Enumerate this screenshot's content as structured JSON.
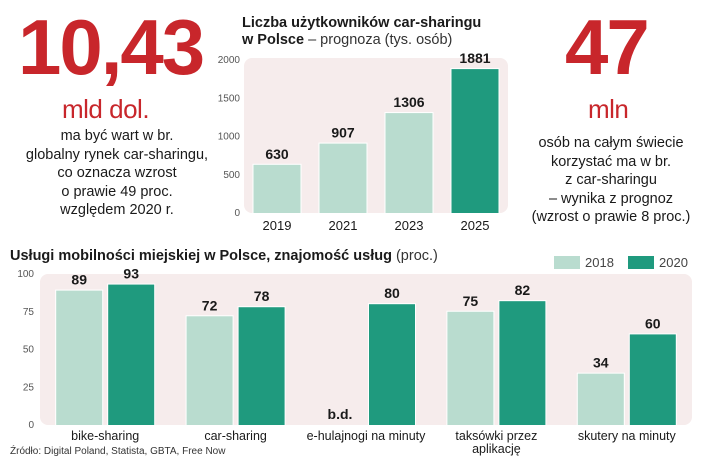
{
  "left_stat": {
    "value": "10,43",
    "unit": "mld dol.",
    "description": [
      "ma być wart w br.",
      "globalny rynek car-sharingu,",
      "co oznacza wzrost",
      "o prawie 49 proc.",
      "względem 2020 r."
    ]
  },
  "right_stat": {
    "value": "47",
    "unit": "mln",
    "description": [
      "osób na całym świecie",
      "korzystać ma w br.",
      "z car-sharingu",
      "– wynika z prognoz",
      "(wzrost o prawie 8 proc.)"
    ]
  },
  "colors": {
    "accent_red": "#c8262b",
    "bar_light": "#b9dccf",
    "bar_dark": "#1f9a7e",
    "panel_bg": "#f6ecec"
  },
  "chart_data": [
    {
      "type": "bar",
      "title": "Liczba użytkowników car-sharingu",
      "title_line2": "w Polsce",
      "subtitle": "– prognoza (tys. osób)",
      "categories": [
        "2019",
        "2021",
        "2023",
        "2025"
      ],
      "values": [
        630,
        907,
        1306,
        1881
      ],
      "value_labels": [
        "630",
        "907",
        "1306",
        "1881"
      ],
      "y_ticks": [
        "0",
        "500",
        "1000",
        "1500",
        "2000"
      ],
      "ylim": [
        0,
        2000
      ]
    },
    {
      "type": "bar",
      "title": "Usługi mobilności miejskiej w Polsce, znajomość usług",
      "subtitle": "(proc.)",
      "categories": [
        [
          "bike-sharing"
        ],
        [
          "car-sharing"
        ],
        [
          "e-hulajnogi na minuty"
        ],
        [
          "taksówki przez",
          "aplikację"
        ],
        [
          "skutery na minuty"
        ]
      ],
      "series": [
        {
          "name": "2018",
          "values": [
            89,
            72,
            null,
            75,
            34
          ],
          "labels": [
            "89",
            "72",
            "b.d.",
            "75",
            "34"
          ]
        },
        {
          "name": "2020",
          "values": [
            93,
            78,
            80,
            82,
            60
          ],
          "labels": [
            "93",
            "78",
            "80",
            "82",
            "60"
          ]
        }
      ],
      "y_ticks": [
        "0",
        "25",
        "50",
        "75",
        "100"
      ],
      "ylim": [
        0,
        100
      ]
    }
  ],
  "source": "Źródło: Digital Poland, Statista, GBTA, Free Now"
}
